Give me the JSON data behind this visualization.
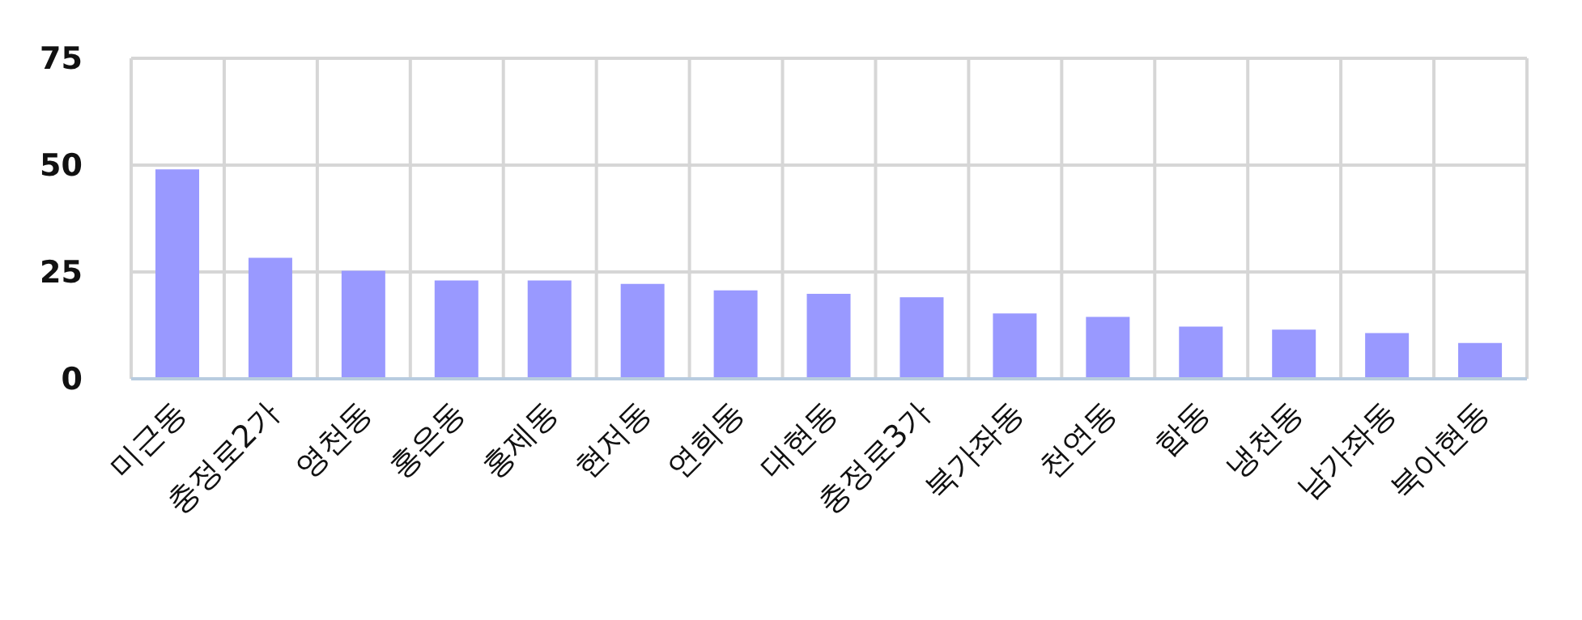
{
  "chart_data": {
    "type": "bar",
    "categories": [
      "미근동",
      "충정로2가",
      "영천동",
      "홍은동",
      "홍제동",
      "현저동",
      "연희동",
      "대현동",
      "충정로3가",
      "북가좌동",
      "천연동",
      "합동",
      "냉천동",
      "남가좌동",
      "북아현동"
    ],
    "values": [
      49,
      28.3,
      25.3,
      23,
      23,
      22.2,
      20.7,
      19.9,
      19.1,
      15.3,
      14.5,
      12.2,
      11.5,
      10.7,
      8.4
    ],
    "color": "#9999ff",
    "ylim": [
      0,
      75
    ],
    "yticks": [
      0,
      25,
      50,
      75
    ],
    "grid": true
  }
}
